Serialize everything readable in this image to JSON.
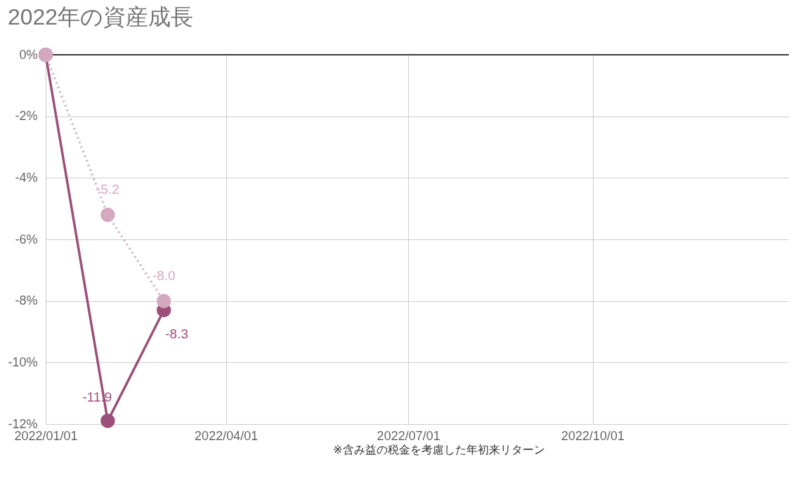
{
  "chart_data": {
    "type": "line",
    "title": "2022年の資産成長",
    "x": [
      "2022-01-01",
      "2022-02-01",
      "2022-03-01"
    ],
    "series": [
      {
        "color": "#9c4f7a",
        "values": [
          0,
          -11.9,
          -8.3
        ],
        "value_labels": [
          null,
          "-11.9",
          "-8.3"
        ],
        "line_style": "solid"
      },
      {
        "color": "#d4a9c0",
        "values": [
          0,
          -5.2,
          -8.0
        ],
        "value_labels": [
          null,
          "-5.2",
          "-8.0"
        ],
        "line_style": "dotted"
      }
    ],
    "xlim": [
      "2022-01-01",
      "2023-01-07"
    ],
    "xticks": [
      {
        "value": "2022-01-01",
        "label": "2022/01/01"
      },
      {
        "value": "2022-04-01",
        "label": "2022/04/01"
      },
      {
        "value": "2022-07-01",
        "label": "2022/07/01"
      },
      {
        "value": "2022-10-01",
        "label": "2022/10/01"
      }
    ],
    "ylim": [
      -12,
      0
    ],
    "yticks": [
      {
        "value": -12,
        "label": "-12%"
      },
      {
        "value": -10,
        "label": "-10%"
      },
      {
        "value": -8,
        "label": "-8%"
      },
      {
        "value": -6,
        "label": "-6%"
      },
      {
        "value": -4,
        "label": "-4%"
      },
      {
        "value": -2,
        "label": "-2%"
      },
      {
        "value": 0,
        "label": "0%"
      }
    ],
    "ref_lines": [
      {
        "axis": "y",
        "value": 0,
        "color": "#000000"
      }
    ],
    "grid": true,
    "marker": "circle",
    "annotations": [
      "※含み益の税金を考慮した年初来リターン"
    ]
  }
}
